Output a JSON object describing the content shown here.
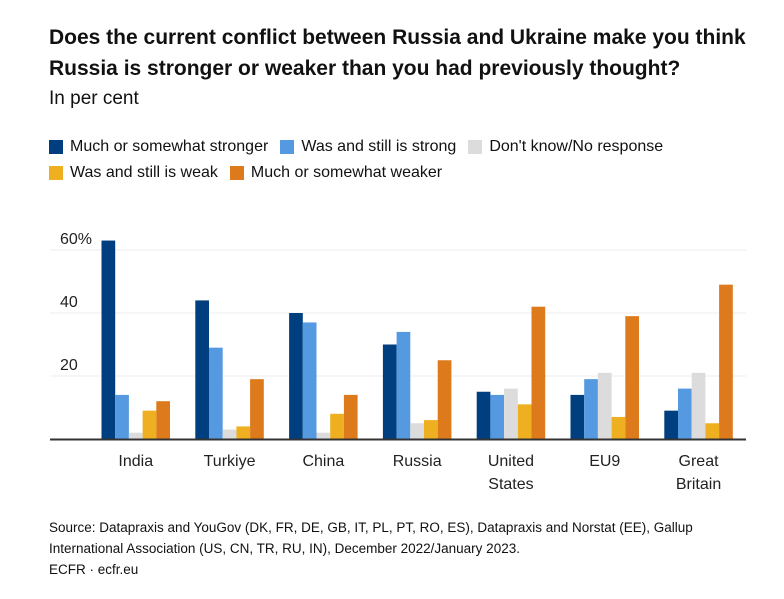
{
  "title": "Does the current conflict between Russia and Ukraine make you think Russia is stronger or weaker than you had previously thought?",
  "subtitle": "In per cent",
  "source": "Source: Datapraxis and YouGov (DK, FR, DE, GB, IT, PL, PT, RO, ES), Datapraxis and Norstat (EE), Gallup International Association (US, CN, TR, RU, IN), December 2022/January 2023.",
  "credit": "ECFR · ecfr.eu",
  "chart_data": {
    "type": "bar",
    "categories": [
      "India",
      "Turkiye",
      "China",
      "Russia",
      "United States",
      "EU9",
      "Great Britain"
    ],
    "series": [
      {
        "name": "Much or somewhat stronger",
        "color": "#003f7f",
        "values": [
          63,
          44,
          40,
          30,
          15,
          14,
          9
        ]
      },
      {
        "name": "Was and still is strong",
        "color": "#5599e0",
        "values": [
          14,
          29,
          37,
          34,
          14,
          19,
          16
        ]
      },
      {
        "name": "Don't know/No response",
        "color": "#dcdcdc",
        "values": [
          2,
          3,
          2,
          5,
          16,
          21,
          21
        ]
      },
      {
        "name": "Was and still is weak",
        "color": "#eeb020",
        "values": [
          9,
          4,
          8,
          6,
          11,
          7,
          5
        ]
      },
      {
        "name": "Much or somewhat weaker",
        "color": "#dd7a1b",
        "values": [
          12,
          19,
          14,
          25,
          42,
          39,
          49
        ]
      }
    ],
    "yticks": [
      "20",
      "40",
      "60%"
    ],
    "ylim": [
      0,
      60
    ],
    "grid": true,
    "legend": "top"
  }
}
